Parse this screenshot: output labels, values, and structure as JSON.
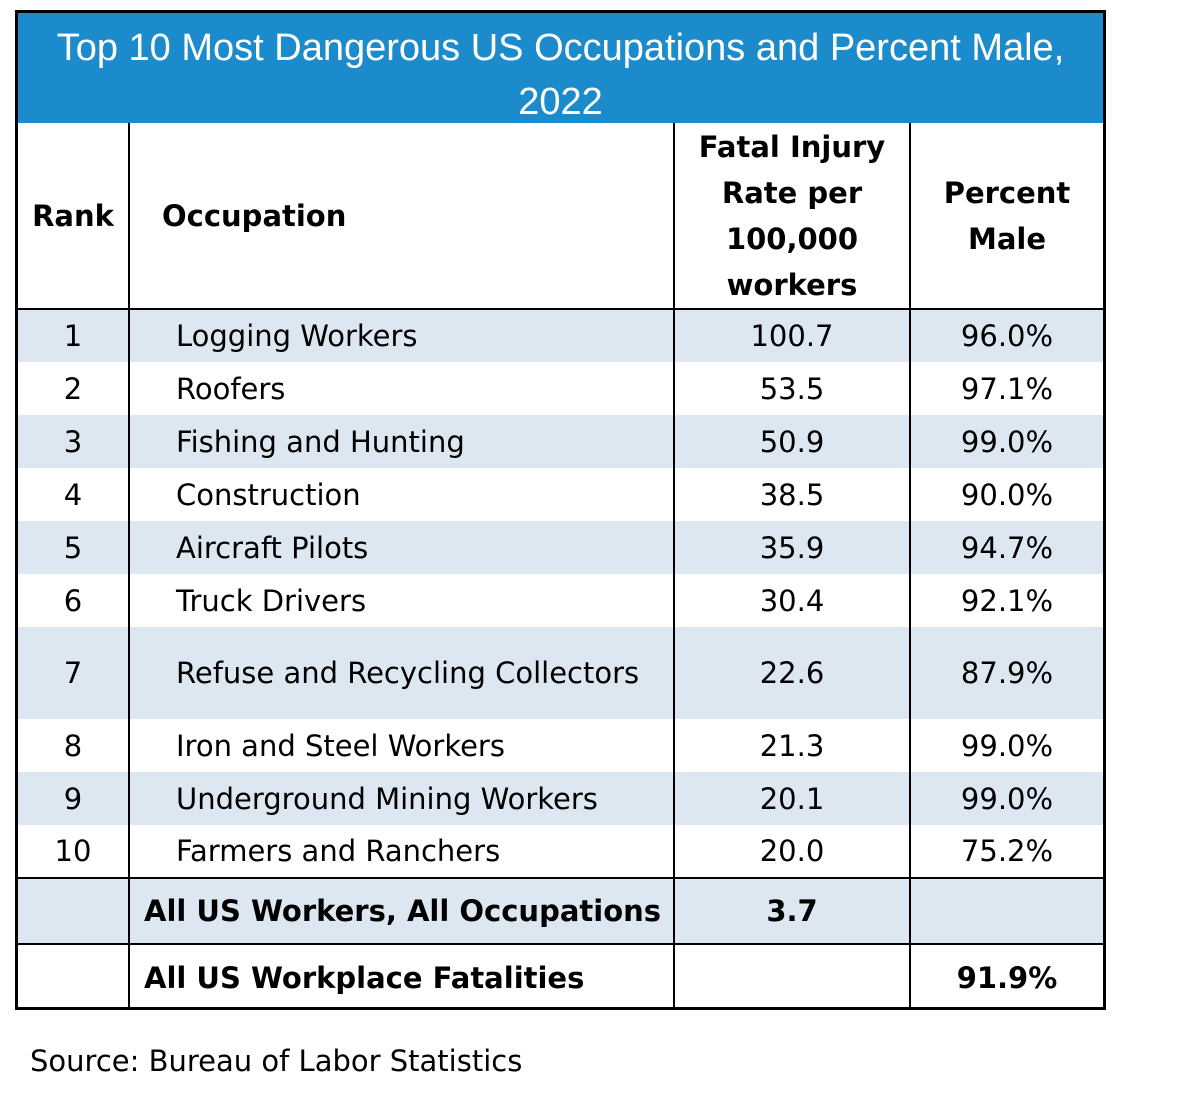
{
  "chart_data": {
    "type": "table",
    "title": "Top 10 Most Dangerous US Occupations and Percent Male, 2022",
    "header_color": "#1b8bcb",
    "shade_color": "#dde7f1",
    "columns": {
      "rank": "Rank",
      "occupation": "Occupation",
      "rate": "Fatal Injury Rate per 100,000 workers",
      "male": "Percent Male"
    },
    "rows": [
      {
        "rank": "1",
        "occupation": "Logging Workers",
        "rate": "100.7",
        "male": "96.0%"
      },
      {
        "rank": "2",
        "occupation": "Roofers",
        "rate": "53.5",
        "male": "97.1%"
      },
      {
        "rank": "3",
        "occupation": "Fishing and Hunting",
        "rate": "50.9",
        "male": "99.0%"
      },
      {
        "rank": "4",
        "occupation": "Construction",
        "rate": "38.5",
        "male": "90.0%"
      },
      {
        "rank": "5",
        "occupation": "Aircraft Pilots",
        "rate": "35.9",
        "male": "94.7%"
      },
      {
        "rank": "6",
        "occupation": "Truck Drivers",
        "rate": "30.4",
        "male": "92.1%"
      },
      {
        "rank": "7",
        "occupation": "Refuse and Recycling Collectors",
        "rate": "22.6",
        "male": "87.9%"
      },
      {
        "rank": "8",
        "occupation": "Iron and Steel Workers",
        "rate": "21.3",
        "male": "99.0%"
      },
      {
        "rank": "9",
        "occupation": "Underground Mining Workers",
        "rate": "20.1",
        "male": "99.0%"
      },
      {
        "rank": "10",
        "occupation": "Farmers and Ranchers",
        "rate": "20.0",
        "male": "75.2%"
      }
    ],
    "totals": [
      {
        "rank": "",
        "occupation": "All US Workers, All Occupations",
        "rate": "3.7",
        "male": ""
      },
      {
        "rank": "",
        "occupation": "All US Workplace Fatalities",
        "rate": "",
        "male": "91.9%"
      }
    ],
    "source": "Source: Bureau of Labor Statistics"
  }
}
